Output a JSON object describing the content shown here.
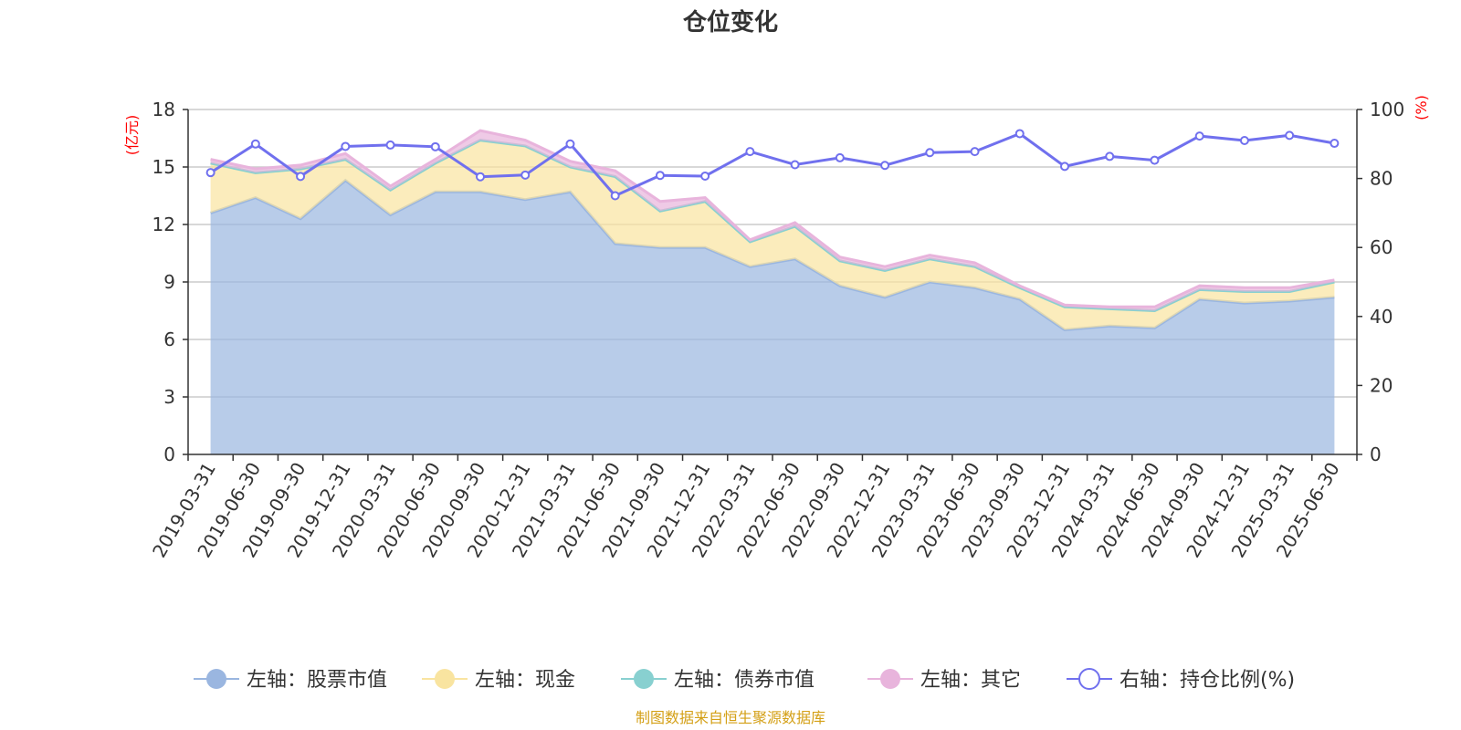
{
  "chart_data": {
    "type": "area",
    "title": "仓位变化",
    "left_axis_unit": "(亿元)",
    "right_axis_unit": "(%)",
    "categories": [
      "2019-03-31",
      "2019-06-30",
      "2019-09-30",
      "2019-12-31",
      "2020-03-31",
      "2020-06-30",
      "2020-09-30",
      "2020-12-31",
      "2021-03-31",
      "2021-06-30",
      "2021-09-30",
      "2021-12-31",
      "2022-03-31",
      "2022-06-30",
      "2022-09-30",
      "2022-12-31",
      "2023-03-31",
      "2023-06-30",
      "2023-09-30",
      "2023-12-31",
      "2024-03-31",
      "2024-06-30",
      "2024-09-30",
      "2024-12-31",
      "2025-03-31",
      "2025-06-30"
    ],
    "left_axis": {
      "min": 0,
      "max": 18,
      "ticks": [
        0,
        3,
        6,
        9,
        12,
        15,
        18
      ]
    },
    "right_axis": {
      "min": 0,
      "max": 100,
      "ticks": [
        0,
        20,
        40,
        60,
        80,
        100
      ]
    },
    "grid": true,
    "legend_position": "bottom",
    "series": [
      {
        "name": "左轴：股票市值",
        "axis": "left",
        "kind": "stacked-area",
        "color": "#9ab6e0",
        "values": [
          12.6,
          13.4,
          12.3,
          14.3,
          12.5,
          13.7,
          13.7,
          13.3,
          13.7,
          11.0,
          10.8,
          10.8,
          9.8,
          10.2,
          8.8,
          8.2,
          9.0,
          8.7,
          8.1,
          6.5,
          6.7,
          6.6,
          8.1,
          7.9,
          8.0,
          8.2
        ]
      },
      {
        "name": "左轴：现金",
        "axis": "left",
        "kind": "stacked-area",
        "color": "#f9e4a0",
        "values": [
          2.6,
          1.3,
          2.6,
          1.1,
          1.3,
          1.5,
          2.7,
          2.8,
          1.3,
          3.5,
          1.9,
          2.4,
          1.3,
          1.7,
          1.3,
          1.4,
          1.2,
          1.1,
          0.6,
          1.2,
          0.9,
          0.9,
          0.5,
          0.6,
          0.5,
          0.8
        ]
      },
      {
        "name": "左轴：债券市值",
        "axis": "left",
        "kind": "stacked-area",
        "color": "#88d0d0",
        "values": [
          0.0,
          0.0,
          0.0,
          0.0,
          0.0,
          0.0,
          0.0,
          0.0,
          0.0,
          0.0,
          0.0,
          0.0,
          0.0,
          0.0,
          0.0,
          0.0,
          0.0,
          0.0,
          0.0,
          0.0,
          0.0,
          0.0,
          0.0,
          0.0,
          0.0,
          0.0
        ]
      },
      {
        "name": "左轴：其它",
        "axis": "left",
        "kind": "stacked-area",
        "color": "#e8b4dc",
        "values": [
          0.2,
          0.2,
          0.2,
          0.3,
          0.2,
          0.2,
          0.5,
          0.3,
          0.3,
          0.3,
          0.5,
          0.2,
          0.1,
          0.2,
          0.2,
          0.2,
          0.2,
          0.2,
          0.1,
          0.1,
          0.1,
          0.2,
          0.2,
          0.2,
          0.2,
          0.1
        ]
      },
      {
        "name": "右轴：持仓比例(%)",
        "axis": "right",
        "kind": "line",
        "color": "#7070ee",
        "values": [
          81.7,
          90.0,
          80.6,
          89.3,
          89.7,
          89.2,
          80.5,
          81.0,
          90.0,
          75.0,
          80.9,
          80.7,
          87.8,
          84.0,
          86.0,
          83.8,
          87.5,
          87.8,
          93.0,
          83.5,
          86.4,
          85.3,
          92.3,
          91.0,
          92.5,
          90.2
        ]
      }
    ]
  },
  "footer": {
    "source": "制图数据来自恒生聚源数据库"
  }
}
